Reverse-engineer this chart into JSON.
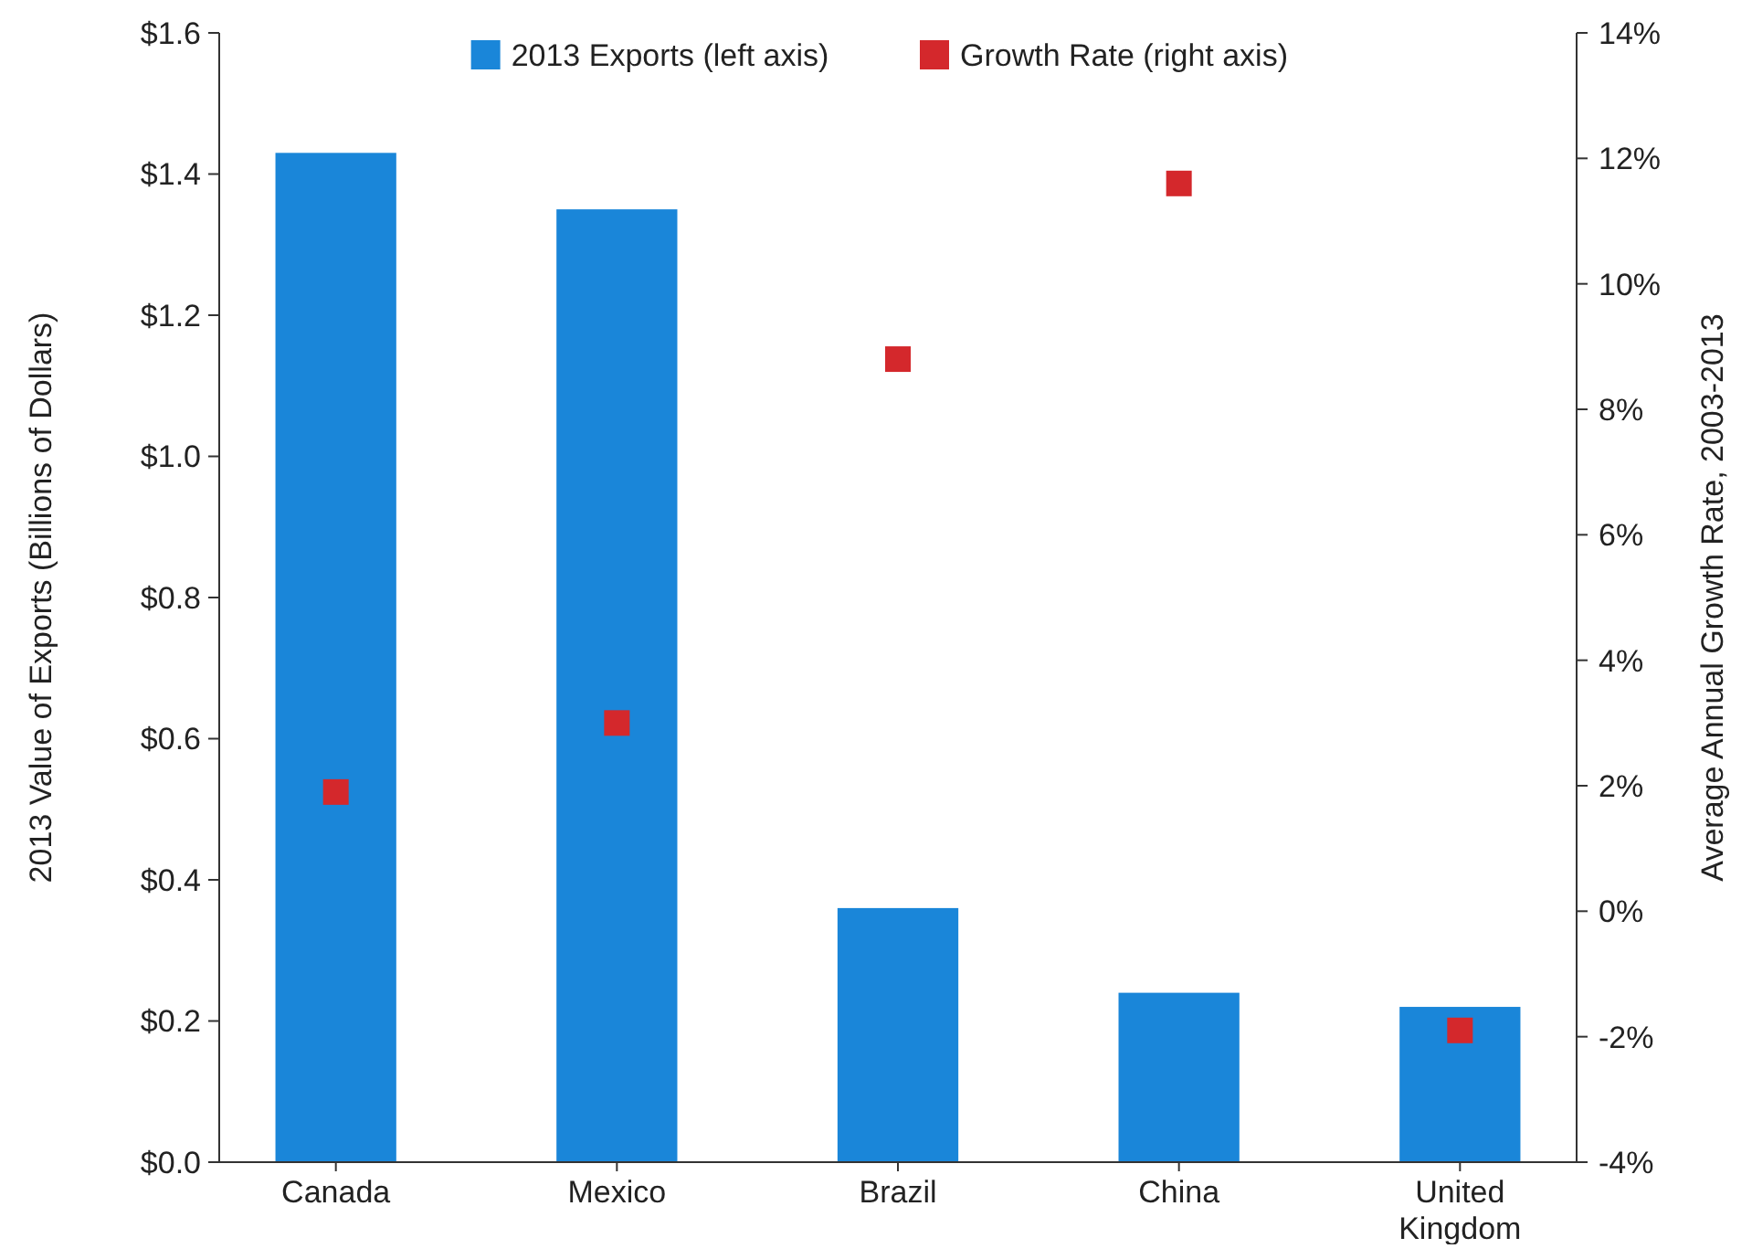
{
  "chart_data": {
    "type": "bar",
    "categories": [
      "Canada",
      "Mexico",
      "Brazil",
      "China",
      "United Kingdom"
    ],
    "series": [
      {
        "name": "2013 Exports (left axis)",
        "color": "#1a86d9",
        "values": [
          1.43,
          1.35,
          0.36,
          0.24,
          0.22
        ]
      },
      {
        "name": "Growth Rate (right axis)",
        "type": "scatter",
        "axis": "y2",
        "marker": "square",
        "color": "#d4282c",
        "values": [
          1.9,
          3.0,
          8.8,
          11.6,
          -1.9
        ]
      }
    ],
    "ylabel": "2013 Value of Exports (Billions of Dollars)",
    "y2label": "Average Annual Growth Rate, 2003-2013",
    "ylim": [
      0,
      1.6
    ],
    "yticks": [
      {
        "value": 0,
        "label": "$0.0"
      },
      {
        "value": 0.2,
        "label": "$0.2"
      },
      {
        "value": 0.4,
        "label": "$0.4"
      },
      {
        "value": 0.6,
        "label": "$0.6"
      },
      {
        "value": 0.8,
        "label": "$0.8"
      },
      {
        "value": 1.0,
        "label": "$1.0"
      },
      {
        "value": 1.2,
        "label": "$1.2"
      },
      {
        "value": 1.4,
        "label": "$1.4"
      },
      {
        "value": 1.6,
        "label": "$1.6"
      }
    ],
    "y2lim": [
      -4,
      14
    ],
    "y2ticks": [
      {
        "value": -4,
        "label": "-4%"
      },
      {
        "value": -2,
        "label": "-2%"
      },
      {
        "value": 0,
        "label": "0%"
      },
      {
        "value": 2,
        "label": "2%"
      },
      {
        "value": 4,
        "label": "4%"
      },
      {
        "value": 6,
        "label": "6%"
      },
      {
        "value": 8,
        "label": "8%"
      },
      {
        "value": 10,
        "label": "10%"
      },
      {
        "value": 12,
        "label": "12%"
      },
      {
        "value": 14,
        "label": "14%"
      }
    ],
    "legend": "top",
    "grid": false
  }
}
